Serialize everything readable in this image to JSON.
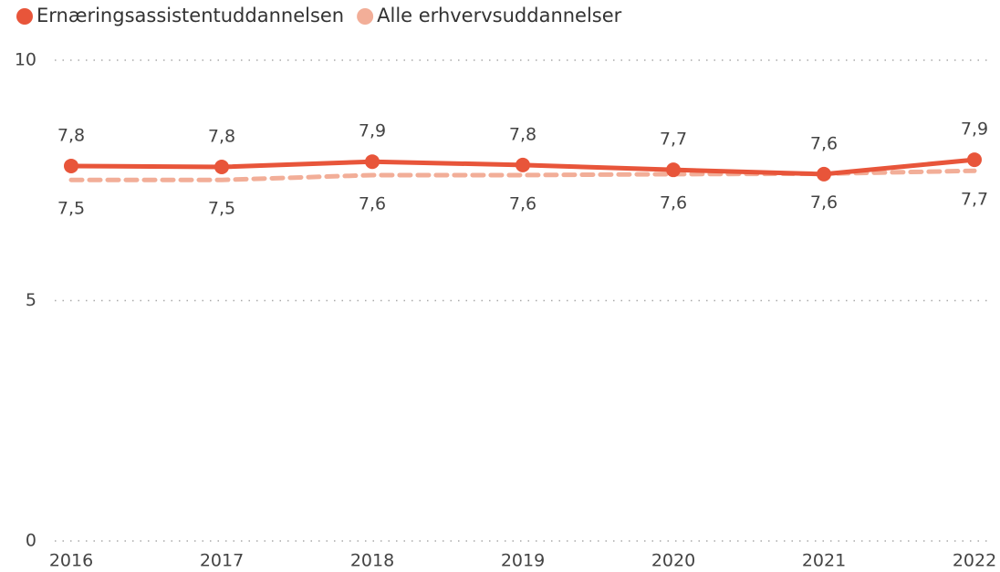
{
  "chart_data": {
    "type": "line",
    "x": [
      "2016",
      "2017",
      "2018",
      "2019",
      "2020",
      "2021",
      "2022"
    ],
    "series": [
      {
        "name": "Ernæringsassistentuddannelsen",
        "color": "#e8553a",
        "dashed": false,
        "markers": true,
        "values": [
          7.8,
          7.78,
          7.89,
          7.82,
          7.72,
          7.63,
          7.93
        ],
        "value_labels": [
          "7,8",
          "7,8",
          "7,9",
          "7,8",
          "7,7",
          "7,6",
          "7,9"
        ]
      },
      {
        "name": "Alle erhvervsuddannelser",
        "color": "#f2ae98",
        "dashed": true,
        "markers": false,
        "values": [
          7.51,
          7.51,
          7.61,
          7.61,
          7.63,
          7.64,
          7.7
        ],
        "value_labels": [
          "7,5",
          "7,5",
          "7,6",
          "7,6",
          "7,6",
          "7,6",
          "7,7"
        ]
      }
    ],
    "ylim": [
      0,
      10
    ],
    "yticks": [
      0,
      5,
      10
    ],
    "grid": true,
    "legend": "top-left"
  }
}
